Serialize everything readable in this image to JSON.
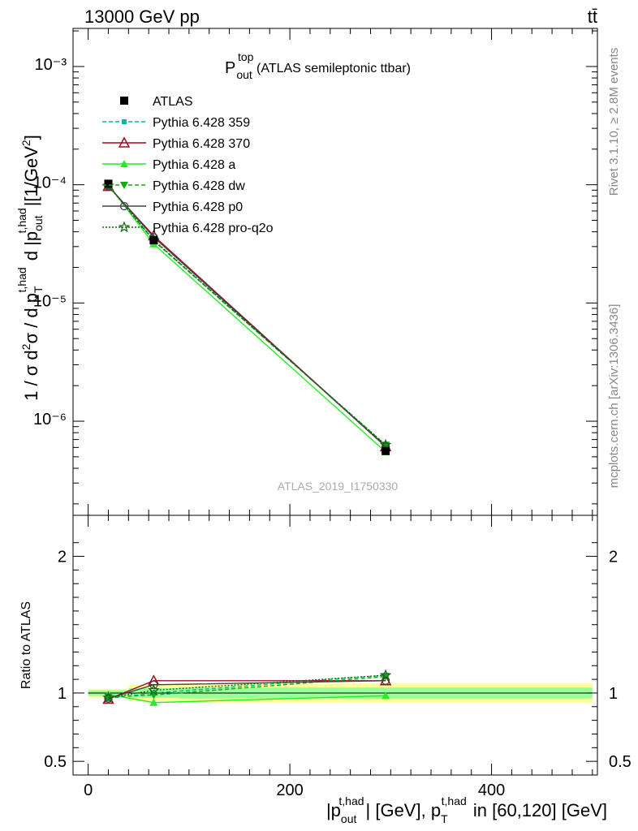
{
  "header": {
    "left_label": "13000 GeV pp",
    "right_label": "tt̄"
  },
  "side_labels": {
    "rivet": "Rivet 3.1.10, ≥ 2.8M events",
    "mcplots": "mcplots.cern.ch [arXiv:1306.3436]"
  },
  "plot_title": {
    "main": "P",
    "sup": "top",
    "sub": "out",
    "rest": " (ATLAS semileptonic ttbar)"
  },
  "watermark": "ATLAS_2019_I1750330",
  "ylabel_main": "1 / σ d²σ / d p_T^{t,had} d |p_out^{t,had}| [1/GeV²]",
  "ylabel_ratio": "Ratio to ATLAS",
  "xlabel": "|p_out^{t,had}| [GeV], p_T^{t,had} in [60,120] [GeV]",
  "chart_data": [
    {
      "type": "line",
      "panel": "main",
      "yscale": "log",
      "xlim": [
        -15,
        505
      ],
      "ylim": [
        1.6e-07,
        0.0021
      ],
      "x_ticks": [
        0,
        200,
        400
      ],
      "y_tick_labels": [
        "10⁻⁶",
        "10⁻⁵",
        "10⁻⁴",
        "10⁻³"
      ],
      "y_tick_values": [
        1e-06,
        1e-05,
        0.0001,
        0.001
      ],
      "bins": [
        [
          0,
          40
        ],
        [
          40,
          90
        ],
        [
          90,
          500
        ]
      ],
      "x": [
        20,
        65,
        295
      ],
      "data": {
        "name": "ATLAS",
        "values": [
          0.000102,
          3.4e-05,
          5.6e-07
        ]
      },
      "series": [
        {
          "name": "Pythia 6.428 359",
          "color": "#00bb99",
          "dash": "5,3",
          "marker": "square-small",
          "values": [
            9.8e-05,
            3.4e-05,
            6.3e-07
          ]
        },
        {
          "name": "Pythia 6.428 370",
          "color": "#9b0f20",
          "dash": "",
          "marker": "triangle-open",
          "values": [
            9.7e-05,
            3.7e-05,
            6.1e-07
          ]
        },
        {
          "name": "Pythia 6.428 a",
          "color": "#22ee22",
          "dash": "",
          "marker": "triangle",
          "values": [
            0.0001,
            3.15e-05,
            5.5e-07
          ]
        },
        {
          "name": "Pythia 6.428 dw",
          "color": "#11aa11",
          "dash": "5,3",
          "marker": "triangle-down",
          "values": [
            9.9e-05,
            3.35e-05,
            6.3e-07
          ]
        },
        {
          "name": "Pythia 6.428 p0",
          "color": "#444444",
          "dash": "",
          "marker": "circle-open",
          "values": [
            9.8e-05,
            3.6e-05,
            6.1e-07
          ]
        },
        {
          "name": "Pythia 6.428 pro-q2o",
          "color": "#116611",
          "dash": "2,2",
          "marker": "star",
          "values": [
            9.8e-05,
            3.4e-05,
            6.3e-07
          ]
        }
      ]
    },
    {
      "type": "line",
      "panel": "ratio",
      "ylabel": "Ratio to ATLAS",
      "xlim": [
        -15,
        505
      ],
      "ylim": [
        0.4,
        2.3
      ],
      "y_tick_values": [
        0.5,
        1,
        2
      ],
      "y_tick_labels": [
        "0.5",
        "1",
        "2"
      ],
      "x_ticks": [
        0,
        200,
        400
      ],
      "x_tick_labels": [
        "0",
        "200",
        "400"
      ],
      "bins": [
        [
          0,
          40
        ],
        [
          40,
          90
        ],
        [
          90,
          500
        ]
      ],
      "band_stat_halfwidth": [
        0.02,
        0.035,
        0.04
      ],
      "band_total_halfwidth": [
        0.03,
        0.06,
        0.07
      ],
      "x": [
        20,
        65,
        295
      ],
      "series": [
        {
          "name": "Pythia 6.428 359",
          "color": "#00bb99",
          "dash": "5,3",
          "marker": "square-small",
          "values": [
            0.96,
            1.0,
            1.13
          ]
        },
        {
          "name": "Pythia 6.428 370",
          "color": "#9b0f20",
          "dash": "",
          "marker": "triangle-open",
          "values": [
            0.955,
            1.09,
            1.09
          ]
        },
        {
          "name": "Pythia 6.428 a",
          "color": "#22ee22",
          "dash": "",
          "marker": "triangle",
          "values": [
            0.99,
            0.93,
            0.98
          ]
        },
        {
          "name": "Pythia 6.428 dw",
          "color": "#11aa11",
          "dash": "5,3",
          "marker": "triangle-down",
          "values": [
            0.97,
            0.985,
            1.12
          ]
        },
        {
          "name": "Pythia 6.428 p0",
          "color": "#444444",
          "dash": "",
          "marker": "circle-open",
          "values": [
            0.96,
            1.06,
            1.09
          ]
        },
        {
          "name": "Pythia 6.428 pro-q2o",
          "color": "#116611",
          "dash": "2,2",
          "marker": "star",
          "values": [
            0.965,
            1.02,
            1.13
          ]
        }
      ]
    }
  ]
}
